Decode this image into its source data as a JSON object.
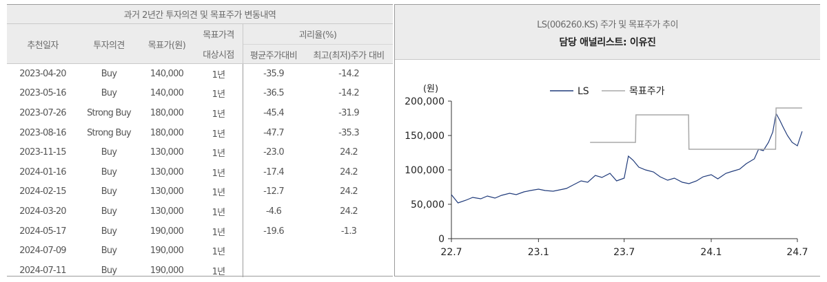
{
  "table": {
    "title": "과거 2년간 투자의견 및 목표주가 변동내역",
    "headers": {
      "date": "추천일자",
      "opinion": "투자의견",
      "target": "목표가(원)",
      "target_time_1": "목표가격",
      "target_time_2": "대상시점",
      "divergence": "괴리율(%)",
      "avg": "평균주가대비",
      "maxmin": "최고(최저)주가 대비"
    },
    "rows": [
      {
        "date": "2023-04-20",
        "opinion": "Buy",
        "target": "140,000",
        "period": "1년",
        "avg": "-35.9",
        "maxmin": "-14.2"
      },
      {
        "date": "2023-05-16",
        "opinion": "Buy",
        "target": "140,000",
        "period": "1년",
        "avg": "-36.5",
        "maxmin": "-14.2"
      },
      {
        "date": "2023-07-26",
        "opinion": "Strong Buy",
        "target": "180,000",
        "period": "1년",
        "avg": "-45.4",
        "maxmin": "-31.9"
      },
      {
        "date": "2023-08-16",
        "opinion": "Strong Buy",
        "target": "180,000",
        "period": "1년",
        "avg": "-47.7",
        "maxmin": "-35.3"
      },
      {
        "date": "2023-11-15",
        "opinion": "Buy",
        "target": "130,000",
        "period": "1년",
        "avg": "-23.0",
        "maxmin": "24.2"
      },
      {
        "date": "2024-01-16",
        "opinion": "Buy",
        "target": "130,000",
        "period": "1년",
        "avg": "-17.4",
        "maxmin": "24.2"
      },
      {
        "date": "2024-02-15",
        "opinion": "Buy",
        "target": "130,000",
        "period": "1년",
        "avg": "-12.7",
        "maxmin": "24.2"
      },
      {
        "date": "2024-03-20",
        "opinion": "Buy",
        "target": "130,000",
        "period": "1년",
        "avg": "-4.6",
        "maxmin": "24.2"
      },
      {
        "date": "2024-05-17",
        "opinion": "Buy",
        "target": "190,000",
        "period": "1년",
        "avg": "-19.6",
        "maxmin": "-1.3"
      },
      {
        "date": "2024-07-09",
        "opinion": "Buy",
        "target": "190,000",
        "period": "1년",
        "avg": "",
        "maxmin": ""
      },
      {
        "date": "2024-07-11",
        "opinion": "Buy",
        "target": "190,000",
        "period": "1년",
        "avg": "",
        "maxmin": ""
      }
    ]
  },
  "chart_panel": {
    "title": "LS(006260.KS) 주가 및 목표주가 추이",
    "analyst": "담당 애널리스트: 이유진"
  },
  "chart_data": {
    "type": "line",
    "ylabel": "(원)",
    "ylim": [
      0,
      200000
    ],
    "yticks": [
      0,
      50000,
      100000,
      150000,
      200000
    ],
    "ytick_labels": [
      "0",
      "50,000",
      "100,000",
      "150,000",
      "200,000"
    ],
    "xlim": [
      "2022-07",
      "2024-07"
    ],
    "xticks": [
      "2022-07",
      "2023-01",
      "2023-07",
      "2024-01",
      "2024-07"
    ],
    "xtick_labels": [
      "22.7",
      "23.1",
      "23.7",
      "24.1",
      "24.7"
    ],
    "legend": "top",
    "series": [
      {
        "name": "LS",
        "color": "#1f3a7a",
        "x": [
          "2022-07-01",
          "2022-07-15",
          "2022-08-01",
          "2022-08-15",
          "2022-09-01",
          "2022-09-15",
          "2022-10-01",
          "2022-10-15",
          "2022-11-01",
          "2022-11-15",
          "2022-12-01",
          "2022-12-15",
          "2023-01-01",
          "2023-01-15",
          "2023-02-01",
          "2023-02-15",
          "2023-03-01",
          "2023-03-15",
          "2023-04-01",
          "2023-04-15",
          "2023-05-01",
          "2023-05-15",
          "2023-06-01",
          "2023-06-15",
          "2023-07-01",
          "2023-07-10",
          "2023-07-20",
          "2023-08-01",
          "2023-08-15",
          "2023-09-01",
          "2023-09-15",
          "2023-10-01",
          "2023-10-15",
          "2023-11-01",
          "2023-11-15",
          "2023-12-01",
          "2023-12-15",
          "2024-01-01",
          "2024-01-15",
          "2024-02-01",
          "2024-02-15",
          "2024-03-01",
          "2024-03-15",
          "2024-04-01",
          "2024-04-10",
          "2024-04-20",
          "2024-05-01",
          "2024-05-10",
          "2024-05-17",
          "2024-05-25",
          "2024-06-01",
          "2024-06-10",
          "2024-06-20",
          "2024-07-01",
          "2024-07-11"
        ],
        "values": [
          64000,
          52000,
          56000,
          60000,
          58000,
          62000,
          59000,
          63000,
          66000,
          64000,
          68000,
          70000,
          72000,
          70000,
          69000,
          71000,
          73000,
          78000,
          84000,
          82000,
          92000,
          89000,
          95000,
          84000,
          88000,
          120000,
          114000,
          104000,
          100000,
          97000,
          90000,
          85000,
          88000,
          82000,
          80000,
          84000,
          90000,
          93000,
          87000,
          95000,
          98000,
          101000,
          109000,
          116000,
          130000,
          128000,
          140000,
          155000,
          182000,
          172000,
          162000,
          150000,
          140000,
          135000,
          156000
        ]
      },
      {
        "name": "목표주가",
        "color": "#a8a8a8",
        "x": [
          "2023-04-20",
          "2023-07-25",
          "2023-07-26",
          "2023-11-14",
          "2023-11-15",
          "2024-05-16",
          "2024-05-17",
          "2024-07-11"
        ],
        "values": [
          140000,
          140000,
          180000,
          180000,
          130000,
          130000,
          190000,
          190000
        ]
      }
    ]
  }
}
